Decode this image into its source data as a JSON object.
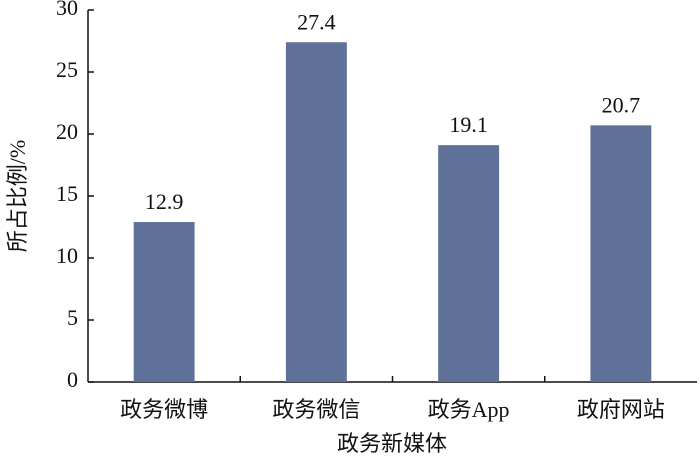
{
  "chart_data": {
    "type": "bar",
    "x_label": "政务新媒体",
    "y_label": "所占比例/%",
    "categories": [
      "政务微博",
      "政务微信",
      "政务App",
      "政府网站"
    ],
    "values": [
      12.9,
      27.4,
      19.1,
      20.7
    ],
    "color": "#5f7099",
    "ylim": [
      0,
      30
    ],
    "yticks": [
      0,
      5,
      10,
      15,
      20,
      25,
      30
    ]
  }
}
